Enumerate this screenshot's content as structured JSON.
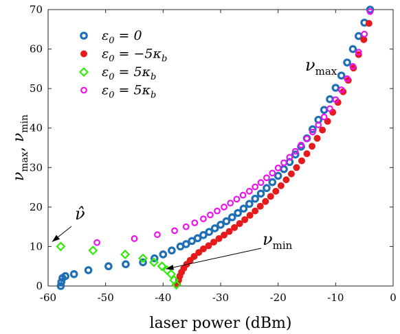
{
  "chart_data": {
    "type": "scatter",
    "xlabel": "laser power (dBm)",
    "ylabel": "ν_max, ν_min",
    "ylabel_parts": {
      "a": "ν",
      "a_sub": "max",
      "sep": ", ",
      "b": "ν",
      "b_sub": "min"
    },
    "xlim": [
      -60,
      0
    ],
    "ylim": [
      0,
      70
    ],
    "xticks": [
      -60,
      -50,
      -40,
      -30,
      -20,
      -10,
      0
    ],
    "yticks": [
      0,
      10,
      20,
      30,
      40,
      50,
      60,
      70
    ],
    "grid": false,
    "legend_placement": "top-left",
    "annotations": {
      "nu_max": {
        "symbol": "ν",
        "sub": "max"
      },
      "nu_min": {
        "symbol": "ν",
        "sub": "min"
      },
      "nu_hat": {
        "symbol": "ν̂"
      }
    },
    "series": [
      {
        "name": "ε0 = 0",
        "legend_html": "ε<tspan dy='5' font-size='13'>0</tspan><tspan dy='-5'> = 0</tspan>",
        "marker": "circle-filled-ring",
        "color": "#1f6fb4",
        "x": [
          -57.8,
          -57.7,
          -57.5,
          -57,
          -55.5,
          -53,
          -49.5,
          -46.5,
          -43.5,
          -41.5,
          -40,
          -38.5,
          -37,
          -36,
          -35,
          -34,
          -33,
          -32,
          -31,
          -30,
          -29,
          -28,
          -27,
          -26,
          -25,
          -24,
          -23,
          -22,
          -21,
          -20,
          -19,
          -18,
          -17,
          -16,
          -15,
          -14,
          -13,
          -12,
          -11,
          -10,
          -9,
          -8,
          -7,
          -6,
          -5,
          -4
        ],
        "y": [
          0,
          1,
          2,
          2.5,
          3,
          4,
          5,
          5.5,
          6,
          7,
          8,
          9,
          10,
          10.6,
          11.4,
          12.1,
          12.9,
          13.7,
          14.6,
          15.5,
          16.4,
          17.4,
          18.5,
          19.6,
          20.8,
          22.1,
          23.4,
          24.8,
          26.3,
          27.9,
          29.6,
          31.4,
          33.3,
          35.3,
          37.4,
          39.7,
          42.1,
          44.6,
          47.3,
          50.2,
          53.3,
          56.6,
          60,
          63.3,
          66.7,
          70
        ]
      },
      {
        "name": "ε0 = −5κb",
        "legend_html": "ε<tspan dy='5' font-size='13'>0</tspan><tspan dy='-5'> = −5κ</tspan><tspan dy='5' font-size='13'>b</tspan>",
        "marker": "circle-filled",
        "color": "#e41a1c",
        "x": [
          -37.5,
          -37.3,
          -37.1,
          -36.8,
          -36.4,
          -35.9,
          -35.3,
          -34.6,
          -33.8,
          -33,
          -32.1,
          -31.2,
          -30.3,
          -29.4,
          -28.5,
          -27.6,
          -26.7,
          -25.8,
          -24.9,
          -24,
          -23.1,
          -22.2,
          -21.3,
          -20.4,
          -19.5,
          -18.6,
          -17.7,
          -16.8,
          -15.9,
          -15,
          -14.1,
          -13.2,
          -12.3,
          -11.4,
          -10.5,
          -9.6,
          -8.7,
          -7.8,
          -6.9,
          -6,
          -5.1,
          -4.2
        ],
        "y": [
          0.5,
          1.5,
          2.5,
          3.5,
          4.5,
          5.5,
          6.5,
          7.5,
          8.5,
          9.4,
          10.2,
          11.1,
          12,
          12.9,
          13.8,
          14.8,
          15.8,
          16.8,
          17.9,
          19,
          20.2,
          21.4,
          22.7,
          24,
          25.4,
          26.9,
          28.4,
          30,
          31.7,
          33.5,
          35.4,
          37.4,
          39.5,
          41.7,
          44,
          46.5,
          49.2,
          52.1,
          55.2,
          58.6,
          62.4,
          66.5
        ]
      },
      {
        "name": "ε0 = 5κb",
        "legend_html": "ε<tspan dy='5' font-size='13'>0</tspan><tspan dy='-5'> = 5κ</tspan><tspan dy='5' font-size='13'>b</tspan>",
        "marker": "diamond-open",
        "color": "#33e80b",
        "x": [
          -57.8,
          -52.2,
          -46.6,
          -43.5,
          -41.6,
          -40.2,
          -39.3,
          -38.6,
          -38.1,
          -37.7
        ],
        "y": [
          10,
          9,
          8,
          7,
          6,
          5,
          4,
          3,
          1.5,
          0.3
        ]
      },
      {
        "name": "ε0 = 5κb",
        "legend_html": "ε<tspan dy='5' font-size='13'>0</tspan><tspan dy='-5'> = 5κ</tspan><tspan dy='5' font-size='13'>b</tspan>",
        "marker": "circle-open",
        "color": "#ee10ee",
        "x": [
          -51.5,
          -45,
          -41,
          -38,
          -36,
          -34.5,
          -33,
          -31.8,
          -30.6,
          -29.4,
          -28.3,
          -27.2,
          -26.1,
          -25,
          -24,
          -23,
          -22,
          -21,
          -20,
          -19,
          -18,
          -17,
          -16,
          -15,
          -14,
          -13,
          -12,
          -11,
          -10,
          -9,
          -8,
          -7,
          -6,
          -5,
          -4
        ],
        "y": [
          11,
          12,
          13,
          14,
          15,
          16,
          17,
          18,
          19,
          20,
          21,
          22,
          23,
          24,
          25.1,
          26.2,
          27.4,
          28.6,
          29.9,
          31.2,
          32.6,
          34.1,
          35.7,
          37.3,
          39,
          40.8,
          42.8,
          44.9,
          47.2,
          49.7,
          52.5,
          55.6,
          59.2,
          63.8,
          69.5
        ]
      }
    ]
  }
}
